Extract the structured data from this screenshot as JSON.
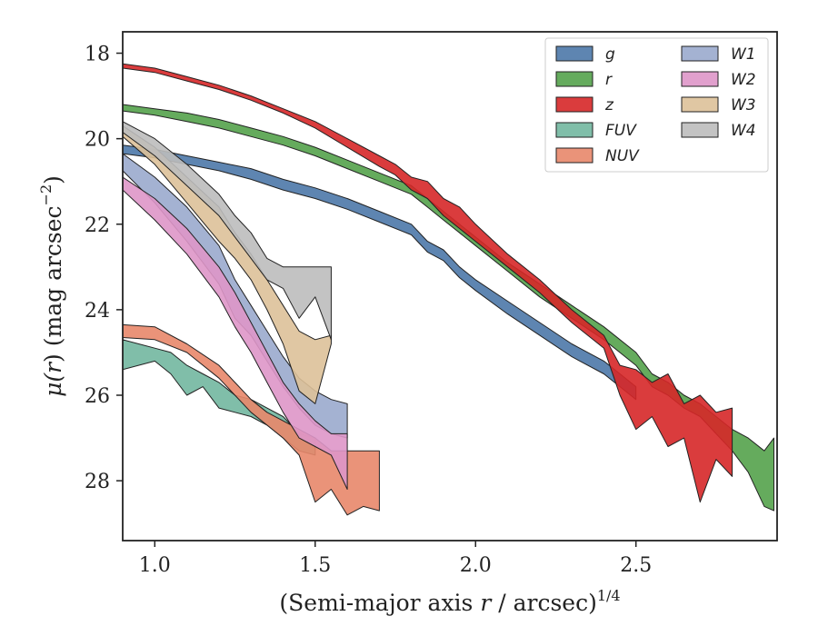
{
  "chart_data": {
    "type": "area",
    "xlabel": "(Semi-major axis r / arcsec)^{1/4}",
    "xlabel_parts": {
      "pre": "(Semi-major axis ",
      "var": "r",
      "mid": " / arcsec)",
      "sup": "1/4"
    },
    "ylabel": "μ(r) (mag arcsec^{-2})",
    "ylabel_parts": {
      "mu": "μ(",
      "var": "r",
      "mid": ") (mag arcsec",
      "sup": "−2",
      "end": ")"
    },
    "xlim": [
      0.9,
      2.94
    ],
    "ylim": [
      29.4,
      17.5
    ],
    "y_inverted": true,
    "x_ticks": [
      1.0,
      1.5,
      2.0,
      2.5
    ],
    "x_tick_labels": [
      "1.0",
      "1.5",
      "2.0",
      "2.5"
    ],
    "y_ticks": [
      18,
      20,
      22,
      24,
      26,
      28
    ],
    "y_tick_labels": [
      "18",
      "20",
      "22",
      "24",
      "26",
      "28"
    ],
    "grid": false,
    "legend": {
      "placement": "top-right",
      "columns": 2
    },
    "series": [
      {
        "name": "g",
        "color": "#4c78a8",
        "x": [
          0.9,
          1.0,
          1.1,
          1.2,
          1.3,
          1.4,
          1.5,
          1.6,
          1.7,
          1.8,
          1.85,
          1.9,
          1.95,
          2.0,
          2.1,
          2.2,
          2.3,
          2.4,
          2.45,
          2.5
        ],
        "lower": [
          20.15,
          20.25,
          20.4,
          20.55,
          20.7,
          20.95,
          21.15,
          21.4,
          21.7,
          22.0,
          22.4,
          22.6,
          23.0,
          23.3,
          23.8,
          24.3,
          24.8,
          25.2,
          25.5,
          25.8
        ],
        "upper": [
          20.35,
          20.45,
          20.6,
          20.75,
          20.95,
          21.2,
          21.4,
          21.65,
          21.95,
          22.25,
          22.65,
          22.85,
          23.25,
          23.55,
          24.1,
          24.6,
          25.1,
          25.5,
          25.8,
          26.1
        ]
      },
      {
        "name": "r",
        "color": "#54a24b",
        "x": [
          0.9,
          1.0,
          1.1,
          1.2,
          1.3,
          1.4,
          1.5,
          1.6,
          1.7,
          1.8,
          1.85,
          1.9,
          1.95,
          2.0,
          2.1,
          2.2,
          2.3,
          2.4,
          2.5,
          2.55,
          2.6,
          2.65,
          2.7,
          2.75,
          2.8,
          2.85,
          2.9,
          2.93
        ],
        "lower": [
          19.2,
          19.3,
          19.4,
          19.55,
          19.75,
          19.95,
          20.2,
          20.5,
          20.8,
          21.1,
          21.4,
          21.7,
          22.0,
          22.3,
          22.9,
          23.4,
          23.9,
          24.4,
          25.0,
          25.5,
          25.7,
          26.0,
          26.2,
          26.5,
          26.8,
          27.0,
          27.3,
          27.0
        ],
        "upper": [
          19.35,
          19.45,
          19.6,
          19.75,
          19.95,
          20.15,
          20.4,
          20.7,
          21.0,
          21.3,
          21.6,
          21.9,
          22.2,
          22.5,
          23.1,
          23.7,
          24.2,
          24.7,
          25.3,
          25.8,
          26.0,
          26.3,
          26.5,
          26.9,
          27.3,
          27.8,
          28.6,
          28.7
        ]
      },
      {
        "name": "z",
        "color": "#d62728",
        "x": [
          0.9,
          1.0,
          1.1,
          1.2,
          1.3,
          1.4,
          1.5,
          1.6,
          1.7,
          1.75,
          1.8,
          1.85,
          1.9,
          1.95,
          2.0,
          2.1,
          2.2,
          2.3,
          2.4,
          2.45,
          2.5,
          2.55,
          2.6,
          2.65,
          2.7,
          2.75,
          2.8
        ],
        "lower": [
          18.25,
          18.35,
          18.55,
          18.75,
          19.0,
          19.3,
          19.6,
          20.0,
          20.4,
          20.6,
          20.9,
          21.0,
          21.4,
          21.6,
          22.0,
          22.7,
          23.3,
          24.0,
          24.6,
          25.3,
          25.4,
          25.7,
          25.5,
          26.2,
          26.0,
          26.4,
          26.3
        ],
        "upper": [
          18.35,
          18.45,
          18.65,
          18.85,
          19.1,
          19.4,
          19.75,
          20.2,
          20.65,
          20.85,
          21.2,
          21.4,
          21.8,
          22.1,
          22.4,
          23.0,
          23.6,
          24.3,
          24.9,
          26.0,
          26.8,
          26.5,
          27.2,
          27.0,
          28.5,
          27.5,
          27.9
        ]
      },
      {
        "name": "FUV",
        "color": "#72b7a0",
        "x": [
          0.9,
          1.0,
          1.05,
          1.1,
          1.15,
          1.2,
          1.25,
          1.3,
          1.35,
          1.4,
          1.45,
          1.5
        ],
        "lower": [
          24.7,
          24.9,
          25.0,
          25.3,
          25.5,
          25.7,
          26.0,
          26.1,
          26.3,
          26.5,
          26.9,
          27.0
        ],
        "upper": [
          25.4,
          25.2,
          25.5,
          26.0,
          25.8,
          26.3,
          26.4,
          26.5,
          26.7,
          27.0,
          27.3,
          27.4
        ]
      },
      {
        "name": "NUV",
        "color": "#e8876a",
        "x": [
          0.9,
          1.0,
          1.1,
          1.2,
          1.25,
          1.3,
          1.35,
          1.4,
          1.45,
          1.5,
          1.55,
          1.6,
          1.65,
          1.7
        ],
        "lower": [
          24.35,
          24.4,
          24.8,
          25.3,
          25.7,
          26.1,
          26.4,
          26.6,
          26.8,
          27.0,
          27.3,
          27.3,
          27.3,
          27.3
        ],
        "upper": [
          24.65,
          24.7,
          25.0,
          25.6,
          26.0,
          26.4,
          26.7,
          27.0,
          27.4,
          28.5,
          28.2,
          28.8,
          28.6,
          28.7
        ]
      },
      {
        "name": "W1",
        "color": "#9aaacd",
        "x": [
          0.9,
          1.0,
          1.1,
          1.2,
          1.25,
          1.3,
          1.35,
          1.4,
          1.45,
          1.5,
          1.55,
          1.6
        ],
        "lower": [
          20.35,
          20.9,
          21.6,
          22.5,
          23.3,
          23.9,
          24.5,
          25.1,
          25.6,
          25.9,
          26.1,
          26.2
        ],
        "upper": [
          20.75,
          21.5,
          22.4,
          23.4,
          24.2,
          24.6,
          25.2,
          25.8,
          26.3,
          26.7,
          26.9,
          27.0
        ]
      },
      {
        "name": "W2",
        "color": "#de96c8",
        "x": [
          0.9,
          1.0,
          1.1,
          1.2,
          1.25,
          1.3,
          1.35,
          1.4,
          1.45,
          1.5,
          1.55,
          1.6
        ],
        "lower": [
          20.9,
          21.4,
          22.1,
          23.0,
          23.6,
          24.3,
          25.0,
          25.7,
          26.2,
          26.6,
          26.9,
          26.9
        ],
        "upper": [
          21.2,
          21.9,
          22.7,
          23.7,
          24.4,
          25.0,
          25.7,
          26.4,
          27.0,
          27.2,
          27.4,
          28.2
        ]
      },
      {
        "name": "W3",
        "color": "#ddc199",
        "x": [
          0.9,
          1.0,
          1.1,
          1.2,
          1.25,
          1.3,
          1.35,
          1.4,
          1.45,
          1.5,
          1.55
        ],
        "lower": [
          19.7,
          20.2,
          20.9,
          21.6,
          22.2,
          22.7,
          23.3,
          23.9,
          24.5,
          24.7,
          24.6
        ],
        "upper": [
          19.95,
          20.6,
          21.5,
          22.4,
          22.8,
          23.3,
          24.0,
          24.8,
          25.9,
          26.2,
          24.8
        ]
      },
      {
        "name": "W4",
        "color": "#bdbdbd",
        "x": [
          0.9,
          1.0,
          1.1,
          1.2,
          1.25,
          1.3,
          1.35,
          1.4,
          1.45,
          1.5,
          1.55
        ],
        "lower": [
          19.6,
          20.0,
          20.6,
          21.3,
          21.8,
          22.2,
          22.8,
          23.0,
          23.0,
          23.0,
          23.0
        ],
        "upper": [
          19.85,
          20.4,
          21.1,
          21.8,
          22.3,
          22.8,
          23.3,
          23.5,
          24.2,
          23.7,
          24.7
        ]
      }
    ]
  }
}
